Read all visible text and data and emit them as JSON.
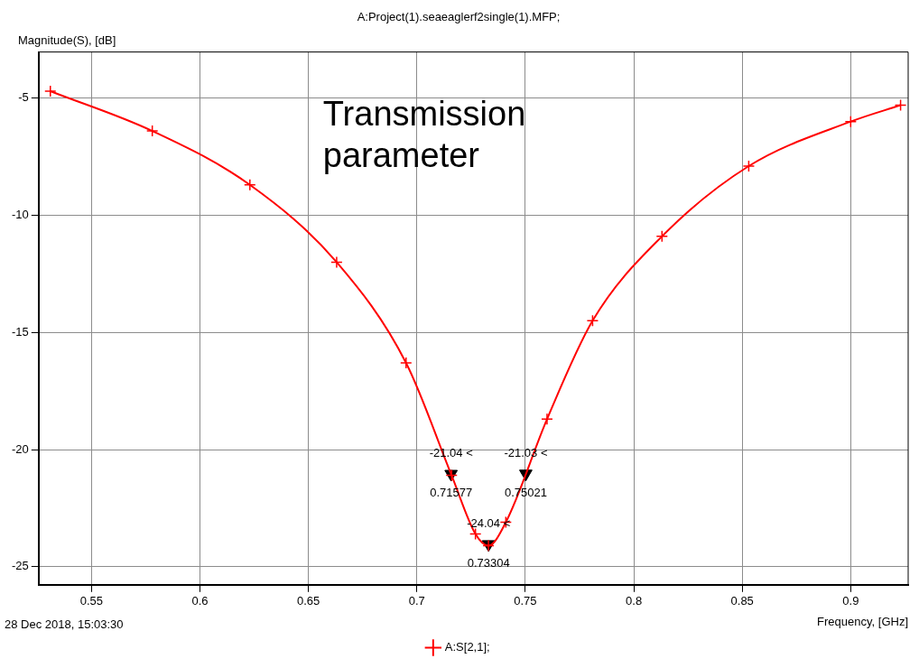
{
  "chart_data": {
    "type": "line",
    "title": "A:Project(1).seaeaglerf2single(1).MFP;",
    "xlabel": "Frequency, [GHz]",
    "ylabel": "Magnitude(S), [dB]",
    "annotations": [
      "Transmission parameter",
      "28 Dec 2018, 15:03:30",
      {
        "text": "-21.04 <",
        "x": 0.71577,
        "y": -21.04
      },
      {
        "text": "0.71577",
        "x": 0.71577,
        "y": -21.04
      },
      {
        "text": "-21.03 <",
        "x": 0.75021,
        "y": -21.03
      },
      {
        "text": "0.75021",
        "x": 0.75021,
        "y": -21.03
      },
      {
        "text": "-24.04 <",
        "x": 0.73304,
        "y": -24.04
      },
      {
        "text": "0.73304",
        "x": 0.73304,
        "y": -24.04
      }
    ],
    "x": [
      0.531,
      0.578,
      0.623,
      0.663,
      0.695,
      0.716,
      0.727,
      0.733,
      0.741,
      0.76,
      0.781,
      0.813,
      0.853,
      0.9,
      0.923
    ],
    "series": [
      {
        "name": "A:S[2,1];",
        "color": "#ff0000",
        "marker": "cross",
        "values": [
          -4.7,
          -6.4,
          -8.7,
          -12.0,
          -16.3,
          -21.1,
          -23.6,
          -24.1,
          -23.1,
          -18.7,
          -14.5,
          -10.9,
          -7.9,
          -6.0,
          -5.3
        ]
      },
      {
        "type": "scatter",
        "color": "#000000",
        "marker": "triangle",
        "x": [
          0.71577,
          0.75021,
          0.73304
        ],
        "values": [
          -21.04,
          -21.03,
          -24.04
        ]
      }
    ],
    "xlim": [
      0.5256,
      0.9265
    ],
    "xticks": [
      0.55,
      0.6,
      0.65,
      0.7,
      0.75,
      0.8,
      0.85,
      0.9
    ],
    "ylim": [
      -25.77,
      -3.03
    ],
    "yticks": [
      -5,
      -10,
      -15,
      -20,
      -25
    ],
    "grid": true,
    "legend": "bottom"
  }
}
